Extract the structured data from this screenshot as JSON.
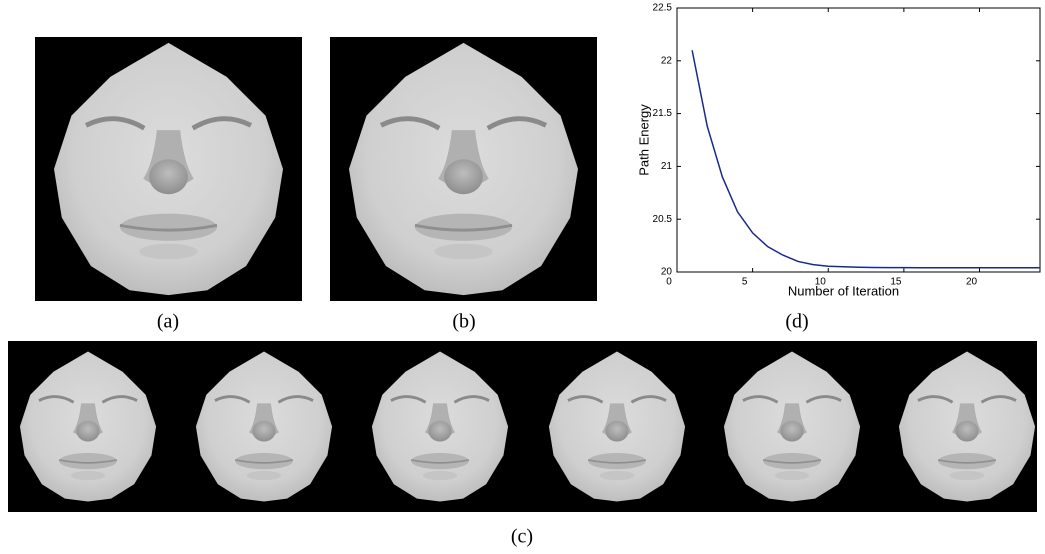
{
  "captions": {
    "a": "(a)",
    "b": "(b)",
    "c": "(c)",
    "d": "(d)"
  },
  "chart_data": {
    "type": "line",
    "x_label": "Number of Iteration",
    "y_label": "Path Energy",
    "x": [
      1,
      2,
      3,
      4,
      5,
      6,
      7,
      8,
      9,
      10,
      11,
      12,
      13,
      14,
      15,
      16,
      17,
      18,
      19,
      20,
      21,
      22,
      23,
      24
    ],
    "series": [
      {
        "color": "#1a2a8c",
        "values": [
          22.1,
          21.38,
          20.9,
          20.57,
          20.37,
          20.24,
          20.16,
          20.1,
          20.07,
          20.055,
          20.05,
          20.045,
          20.043,
          20.042,
          20.041,
          20.04,
          20.04,
          20.04,
          20.04,
          20.04,
          20.04,
          20.04,
          20.04,
          20.04
        ]
      }
    ],
    "xlim": [
      0,
      24
    ],
    "xticks": [
      0,
      5,
      10,
      15,
      20
    ],
    "ylim": [
      20,
      22.5
    ],
    "yticks": [
      20,
      20.5,
      21,
      21.5,
      22,
      22.5
    ]
  }
}
